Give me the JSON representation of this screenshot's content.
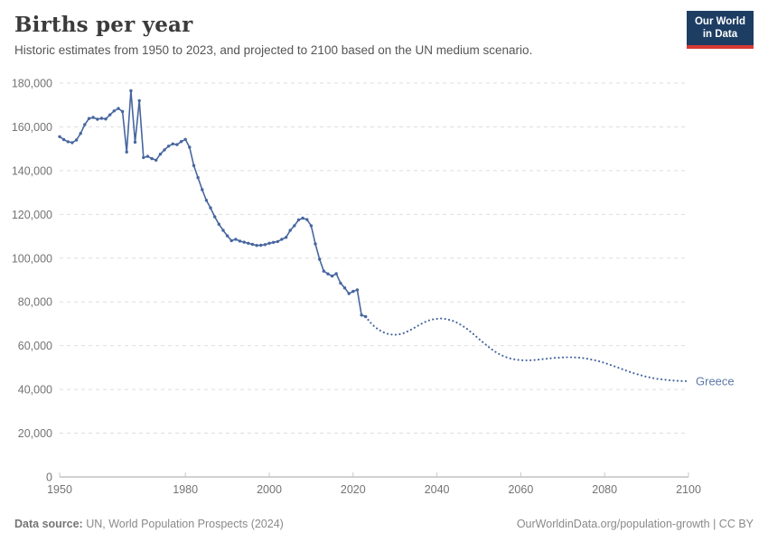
{
  "header": {
    "title": "Births per year",
    "subtitle": "Historic estimates from 1950 to 2023, and projected to 2100 based on the UN medium scenario.",
    "logo": {
      "line1": "Our World",
      "line2": "in Data",
      "bg_color": "#1d3d63",
      "accent_color": "#d93a34"
    }
  },
  "chart_data": {
    "type": "line",
    "title": "Births per year",
    "entity_label": "Greece",
    "line_color": "#47669f",
    "label_color": "#5e79a8",
    "grid_color": "#dedede",
    "axis_color": "#a3a3a3",
    "tick_text_color": "#737373",
    "xlim": [
      1950,
      2100
    ],
    "ylim": [
      0,
      180000
    ],
    "grid": true,
    "legend_position": "end-of-line",
    "x_ticks": [
      {
        "value": 1950,
        "label": "1950"
      },
      {
        "value": 1980,
        "label": "1980"
      },
      {
        "value": 2000,
        "label": "2000"
      },
      {
        "value": 2020,
        "label": "2020"
      },
      {
        "value": 2040,
        "label": "2040"
      },
      {
        "value": 2060,
        "label": "2060"
      },
      {
        "value": 2080,
        "label": "2080"
      },
      {
        "value": 2100,
        "label": "2100"
      }
    ],
    "y_ticks": [
      {
        "value": 0,
        "label": "0"
      },
      {
        "value": 20000,
        "label": "20,000"
      },
      {
        "value": 40000,
        "label": "40,000"
      },
      {
        "value": 60000,
        "label": "60,000"
      },
      {
        "value": 80000,
        "label": "80,000"
      },
      {
        "value": 100000,
        "label": "100,000"
      },
      {
        "value": 120000,
        "label": "120,000"
      },
      {
        "value": 140000,
        "label": "140,000"
      },
      {
        "value": 160000,
        "label": "160,000"
      },
      {
        "value": 180000,
        "label": "180,000"
      }
    ],
    "series": [
      {
        "name": "historic",
        "style": "solid",
        "markers": true,
        "start_year": 1950,
        "step": 1,
        "values": [
          155500,
          154200,
          153200,
          152800,
          154000,
          157000,
          161000,
          163800,
          164300,
          163500,
          163900,
          163600,
          165500,
          167300,
          168400,
          167000,
          148500,
          176500,
          153000,
          172000,
          146000,
          146500,
          145500,
          144800,
          147500,
          149500,
          151200,
          152200,
          151900,
          153300,
          154300,
          150700,
          142300,
          136800,
          131300,
          126400,
          123000,
          118900,
          115500,
          112700,
          110200,
          108000,
          108600,
          107800,
          107300,
          106800,
          106300,
          105800,
          105900,
          106200,
          106800,
          107200,
          107600,
          108600,
          109500,
          112700,
          114800,
          117500,
          118300,
          117600,
          114800,
          106500,
          99500,
          94100,
          92800,
          91800,
          92900,
          88600,
          86400,
          83800,
          84800,
          85500,
          74000,
          73300
        ]
      },
      {
        "name": "projection (UN medium scenario)",
        "style": "dotted",
        "markers": false,
        "start_year": 2023,
        "step": 1,
        "values": [
          73300,
          70800,
          68900,
          67400,
          66300,
          65500,
          65100,
          65000,
          65200,
          65700,
          66500,
          67500,
          68600,
          69700,
          70700,
          71500,
          72000,
          72300,
          72400,
          72200,
          71800,
          71200,
          70300,
          69200,
          67900,
          66400,
          64800,
          63100,
          61500,
          59900,
          58400,
          57100,
          56000,
          55100,
          54400,
          53900,
          53600,
          53400,
          53300,
          53300,
          53400,
          53600,
          53800,
          54000,
          54200,
          54400,
          54500,
          54600,
          54700,
          54700,
          54600,
          54500,
          54300,
          54000,
          53600,
          53200,
          52700,
          52100,
          51500,
          50800,
          50100,
          49400,
          48700,
          48000,
          47400,
          46800,
          46300,
          45800,
          45400,
          45000,
          44700,
          44500,
          44300,
          44100,
          44000,
          43900,
          43800,
          43800
        ]
      }
    ]
  },
  "footer": {
    "source_label": "Data source:",
    "source_text": " UN, World Population Prospects (2024)",
    "right_text": "OurWorldinData.org/population-growth | CC BY"
  }
}
